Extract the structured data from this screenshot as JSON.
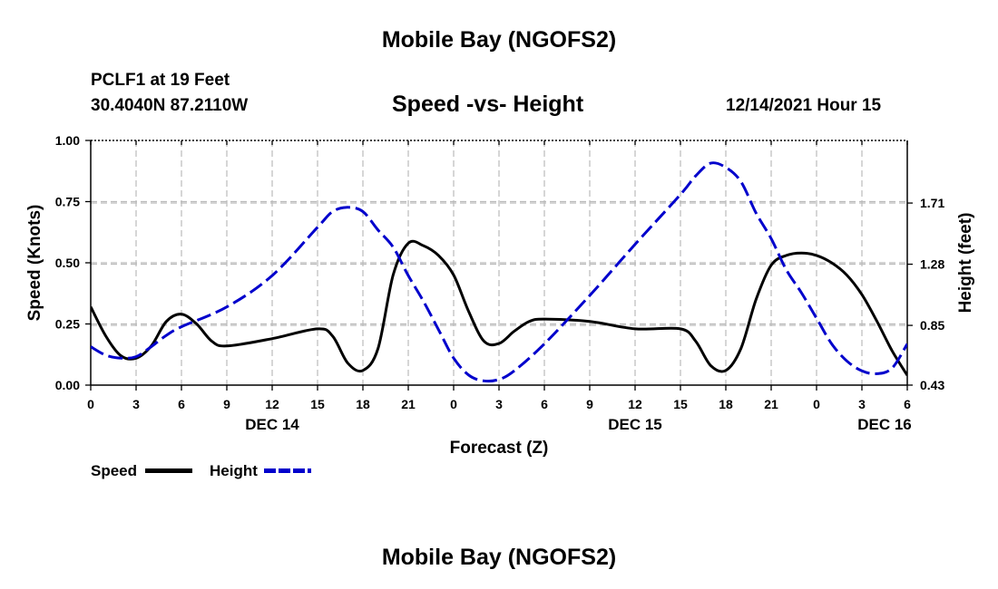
{
  "header": {
    "title": "Mobile Bay (NGOFS2)",
    "station": "PCLF1 at 19 Feet",
    "coords": "30.4040N  87.2110W",
    "subtitle": "Speed -vs- Height",
    "datetime": "12/14/2021 Hour 15"
  },
  "footer": {
    "title": "Mobile Bay (NGOFS2)"
  },
  "legend": {
    "speed_label": "Speed",
    "height_label": "Height"
  },
  "chart_data": {
    "type": "line",
    "xlabel": "Forecast (Z)",
    "ylabel": "Speed (Knots)",
    "y2label": "Height (feet)",
    "x_range": [
      0,
      54
    ],
    "ylim": [
      0,
      1.0
    ],
    "y2lim": [
      0.43,
      2.15
    ],
    "x_ticks": [
      0,
      3,
      6,
      9,
      12,
      15,
      18,
      21,
      24,
      27,
      30,
      33,
      36,
      39,
      42,
      45,
      48,
      51,
      54
    ],
    "x_tick_labels": [
      "0",
      "3",
      "6",
      "9",
      "12",
      "15",
      "18",
      "21",
      "0",
      "3",
      "6",
      "9",
      "12",
      "15",
      "18",
      "21",
      "0",
      "3",
      "6"
    ],
    "date_labels": [
      {
        "x": 12,
        "label": "DEC 14"
      },
      {
        "x": 36,
        "label": "DEC 15"
      },
      {
        "x": 52.5,
        "label": "DEC 16"
      }
    ],
    "y_ticks": [
      0.0,
      0.25,
      0.5,
      0.75,
      1.0
    ],
    "y_tick_labels": [
      "0.00",
      "0.25",
      "0.50",
      "0.75",
      "1.00"
    ],
    "y2_ticks": [
      0.43,
      0.85,
      1.28,
      1.71
    ],
    "y2_tick_labels": [
      "0.43",
      "0.85",
      "1.28",
      "1.71"
    ],
    "grid": true,
    "legend_position": "bottom-left",
    "series": [
      {
        "name": "Speed",
        "axis": "left",
        "color": "#000000",
        "dashed": false,
        "x": [
          0,
          1,
          2,
          3,
          4,
          5,
          6,
          7,
          8,
          9,
          12,
          15,
          16,
          17,
          18,
          19,
          20,
          21,
          22,
          23,
          24,
          25,
          26,
          27,
          28,
          29,
          30,
          33,
          36,
          39,
          40,
          41,
          42,
          43,
          44,
          45,
          46,
          47,
          48,
          49,
          50,
          51,
          52,
          53,
          54
        ],
        "values": [
          0.32,
          0.2,
          0.12,
          0.11,
          0.16,
          0.26,
          0.29,
          0.25,
          0.18,
          0.16,
          0.19,
          0.23,
          0.2,
          0.09,
          0.06,
          0.15,
          0.45,
          0.58,
          0.57,
          0.53,
          0.45,
          0.3,
          0.18,
          0.17,
          0.22,
          0.26,
          0.27,
          0.26,
          0.23,
          0.23,
          0.18,
          0.08,
          0.06,
          0.15,
          0.35,
          0.49,
          0.53,
          0.54,
          0.53,
          0.5,
          0.45,
          0.37,
          0.26,
          0.14,
          0.04
        ]
      },
      {
        "name": "Height",
        "axis": "right",
        "color": "#0000cc",
        "dashed": true,
        "x": [
          0,
          1,
          2,
          3,
          4,
          5,
          6,
          9,
          12,
          15,
          16,
          17,
          18,
          19,
          20,
          21,
          22,
          23,
          24,
          25,
          26,
          27,
          28,
          30,
          33,
          36,
          39,
          40,
          41,
          42,
          43,
          44,
          45,
          46,
          47,
          48,
          49,
          50,
          51,
          52,
          53,
          54
        ],
        "values": [
          0.7,
          0.64,
          0.62,
          0.63,
          0.7,
          0.78,
          0.84,
          0.98,
          1.2,
          1.54,
          1.65,
          1.68,
          1.65,
          1.52,
          1.4,
          1.2,
          1.02,
          0.82,
          0.62,
          0.5,
          0.46,
          0.47,
          0.53,
          0.72,
          1.06,
          1.42,
          1.77,
          1.9,
          1.99,
          1.96,
          1.86,
          1.64,
          1.46,
          1.24,
          1.08,
          0.9,
          0.72,
          0.6,
          0.53,
          0.51,
          0.55,
          0.72
        ]
      }
    ]
  }
}
